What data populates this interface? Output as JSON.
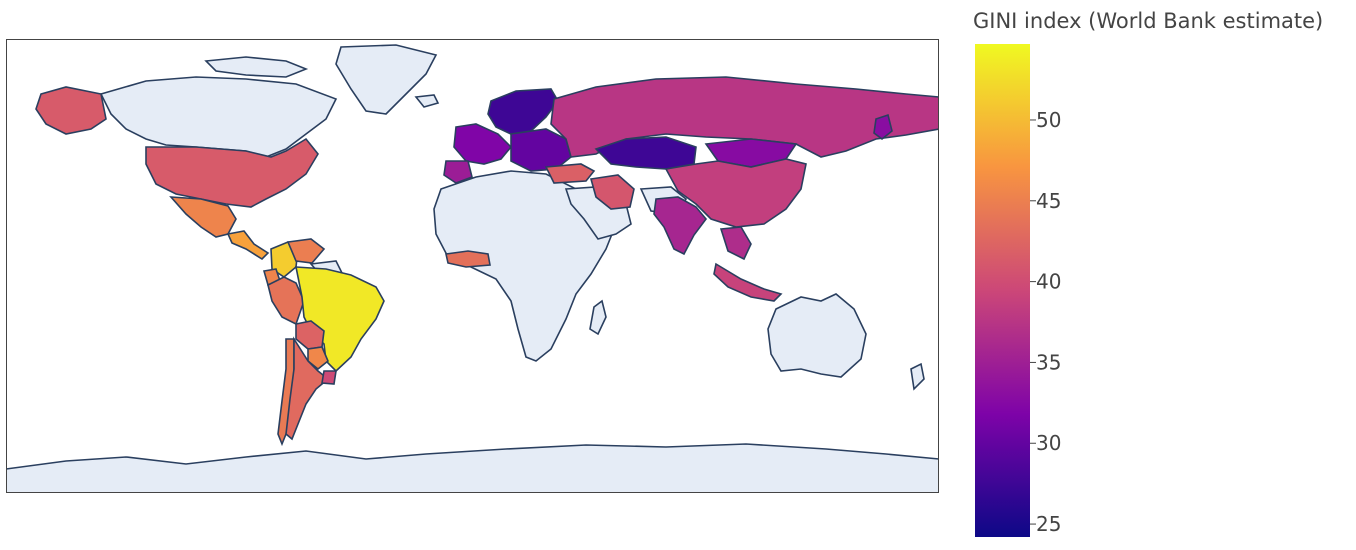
{
  "colorbar": {
    "title": "GINI index (World Bank estimate)",
    "ticks": [
      "25",
      "30",
      "35",
      "40",
      "45",
      "50"
    ],
    "colors": [
      "#0d0887",
      "#7e03a8",
      "#cc4778",
      "#f89540",
      "#f0f921"
    ]
  },
  "map": {
    "ocean_color": "#ffffff",
    "nodata_land_color": "#e5ecf6",
    "border_color": "#2a3f5f",
    "regions": [
      {
        "name": "Alaska",
        "gini": 41.4
      },
      {
        "name": "United States",
        "gini": 41.4
      },
      {
        "name": "Mexico",
        "gini": 45.4
      },
      {
        "name": "Central America",
        "gini": 48.0
      },
      {
        "name": "Colombia",
        "gini": 51.3
      },
      {
        "name": "Venezuela",
        "gini": 44.8
      },
      {
        "name": "Ecuador",
        "gini": 45.4
      },
      {
        "name": "Peru",
        "gini": 43.8
      },
      {
        "name": "Brazil",
        "gini": 53.4
      },
      {
        "name": "Bolivia",
        "gini": 42.2
      },
      {
        "name": "Chile",
        "gini": 44.4
      },
      {
        "name": "Argentina",
        "gini": 42.9
      },
      {
        "name": "Paraguay",
        "gini": 45.7
      },
      {
        "name": "Uruguay",
        "gini": 39.7
      },
      {
        "name": "Scandinavia",
        "gini": 27.5
      },
      {
        "name": "Western Europe",
        "gini": 32.0
      },
      {
        "name": "Eastern Europe",
        "gini": 30.0
      },
      {
        "name": "Iberia",
        "gini": 34.7
      },
      {
        "name": "Russia",
        "gini": 37.5
      },
      {
        "name": "Kazakhstan",
        "gini": 27.5
      },
      {
        "name": "Mongolia",
        "gini": 32.7
      },
      {
        "name": "China",
        "gini": 38.5
      },
      {
        "name": "Turkey",
        "gini": 41.9
      },
      {
        "name": "Iran",
        "gini": 40.9
      },
      {
        "name": "India",
        "gini": 35.7
      },
      {
        "name": "Southeast Asia",
        "gini": 36.5
      },
      {
        "name": "Indonesia",
        "gini": 39.0
      },
      {
        "name": "Japan",
        "gini": 32.9
      },
      {
        "name": "West Africa",
        "gini": 43.5
      }
    ]
  }
}
